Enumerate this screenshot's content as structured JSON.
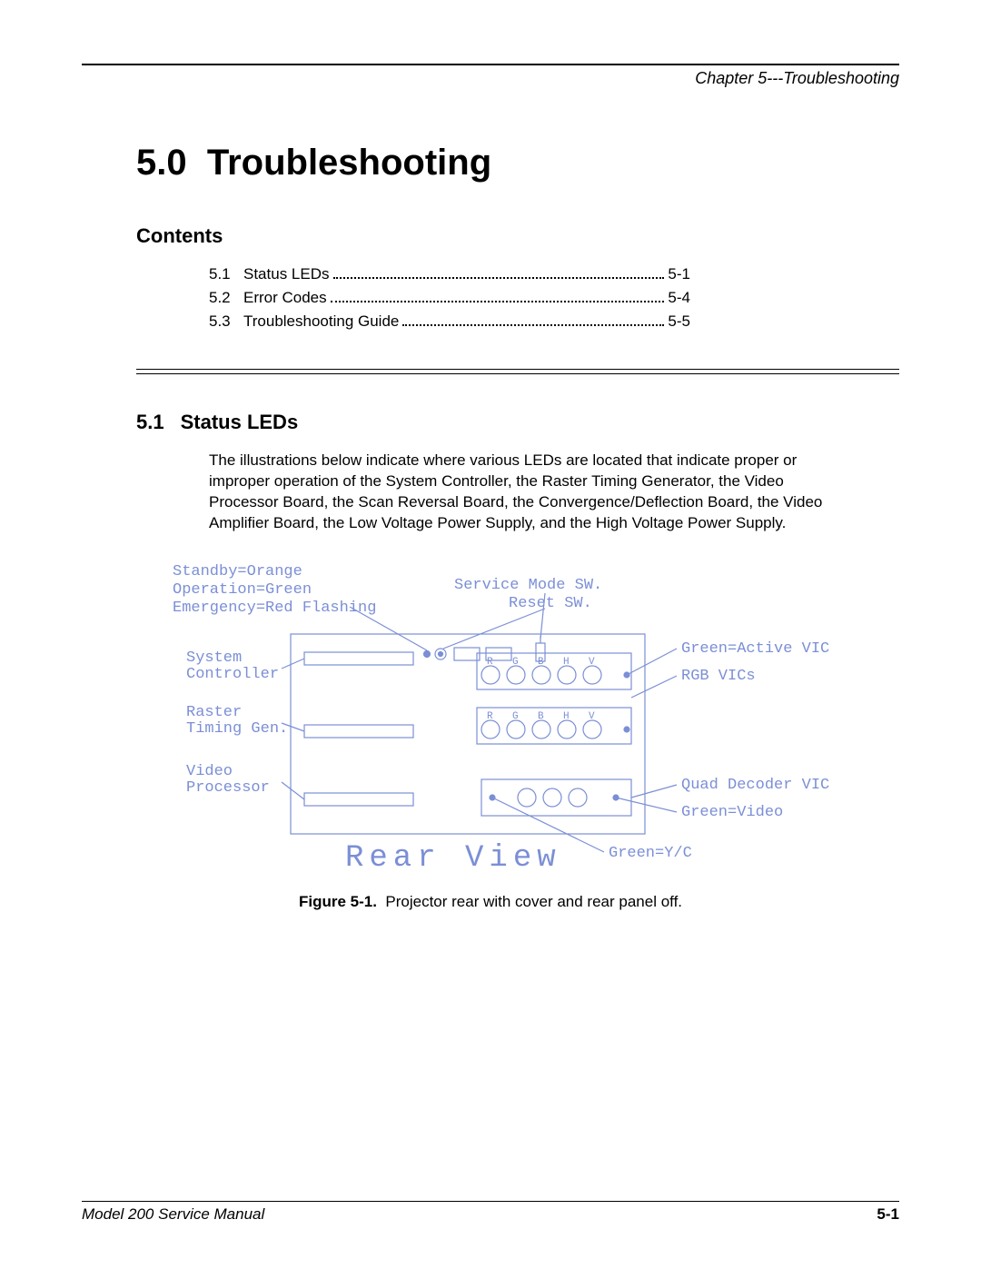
{
  "header": {
    "chapter_label": "Chapter 5---Troubleshooting"
  },
  "chapter": {
    "number": "5.0",
    "title": "Troubleshooting"
  },
  "contents": {
    "heading": "Contents",
    "items": [
      {
        "num": "5.1",
        "title": "Status LEDs",
        "page": "5-1"
      },
      {
        "num": "5.2",
        "title": "Error Codes",
        "page": "5-4"
      },
      {
        "num": "5.3",
        "title": "Troubleshooting Guide",
        "page": "5-5"
      }
    ]
  },
  "section": {
    "number": "5.1",
    "title": "Status LEDs",
    "paragraph": "The illustrations below indicate where various LEDs are located that indicate proper or improper operation of the System Controller, the Raster Timing Generator, the Video Processor Board, the Scan Reversal Board, the Convergence/Deflection Board, the Video Amplifier Board, the Low Voltage Power Supply, and the High Voltage Power Supply."
  },
  "figure": {
    "label": "Figure 5-1.",
    "caption": "Projector rear with cover and rear panel off.",
    "colors": {
      "line": "#7b8fd6",
      "background": "#ffffff"
    },
    "stroke_width": 1.2,
    "title": "Rear View",
    "title_fontsize": 34,
    "label_fontsize": 17,
    "small_label_fontsize": 14,
    "left_labels": {
      "standby": "Standby=Orange",
      "operation": "Operation=Green",
      "emergency": "Emergency=Red Flashing",
      "system_controller_l1": "System",
      "system_controller_l2": "Controller",
      "raster_l1": "Raster",
      "raster_l2": "Timing Gen.",
      "video_l1": "Video",
      "video_l2": "Processor"
    },
    "top_labels": {
      "service_mode": "Service Mode SW.",
      "reset": "Reset SW."
    },
    "right_labels": {
      "active_vic": "Green=Active VIC",
      "rgb_vics": "RGB VICs",
      "quad_decoder": "Quad Decoder VIC",
      "green_video": "Green=Video",
      "green_yc": "Green=Y/C"
    },
    "connector_letters": [
      "R",
      "G",
      "B",
      "H",
      "V"
    ]
  },
  "footer": {
    "manual": "Model 200 Service Manual",
    "page": "5-1"
  }
}
